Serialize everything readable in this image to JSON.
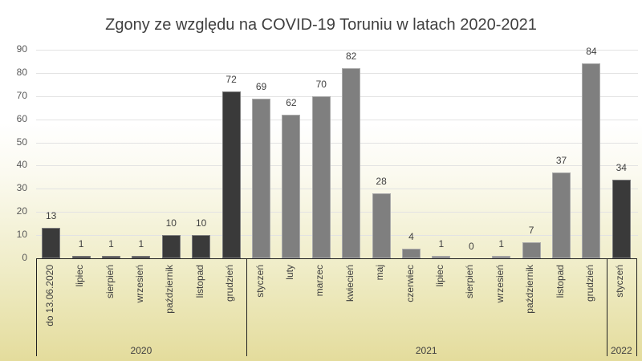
{
  "chart_data": {
    "type": "bar",
    "title": "Zgony ze względu na COVID-19 Toruniu w latach 2020-2021",
    "xlabel": "",
    "ylabel": "",
    "ylim": [
      0,
      90
    ],
    "yticks": [
      0,
      10,
      20,
      30,
      40,
      50,
      60,
      70,
      80,
      90
    ],
    "grid": true,
    "legend": "none",
    "categories": [
      "do 13.06.2020",
      "lipiec",
      "sierpień",
      "wrzesień",
      "październik",
      "listopad",
      "grudzień",
      "styczeń",
      "luty",
      "marzec",
      "kwiecień",
      "maj",
      "czerwiec",
      "lipiec",
      "sierpień",
      "wrzesień",
      "październik",
      "listopad",
      "grudzień",
      "styczeń"
    ],
    "values": [
      13,
      1,
      1,
      1,
      10,
      10,
      72,
      69,
      62,
      70,
      82,
      28,
      4,
      1,
      0,
      1,
      7,
      37,
      84,
      34
    ],
    "groups": [
      {
        "label": "2020",
        "start": 0,
        "count": 7
      },
      {
        "label": "2021",
        "start": 7,
        "count": 12
      },
      {
        "label": "2022",
        "start": 19,
        "count": 1
      }
    ],
    "colors": {
      "2020": "#3a3a3a",
      "2021": "#7f7f7f",
      "2022": "#3a3a3a"
    }
  }
}
